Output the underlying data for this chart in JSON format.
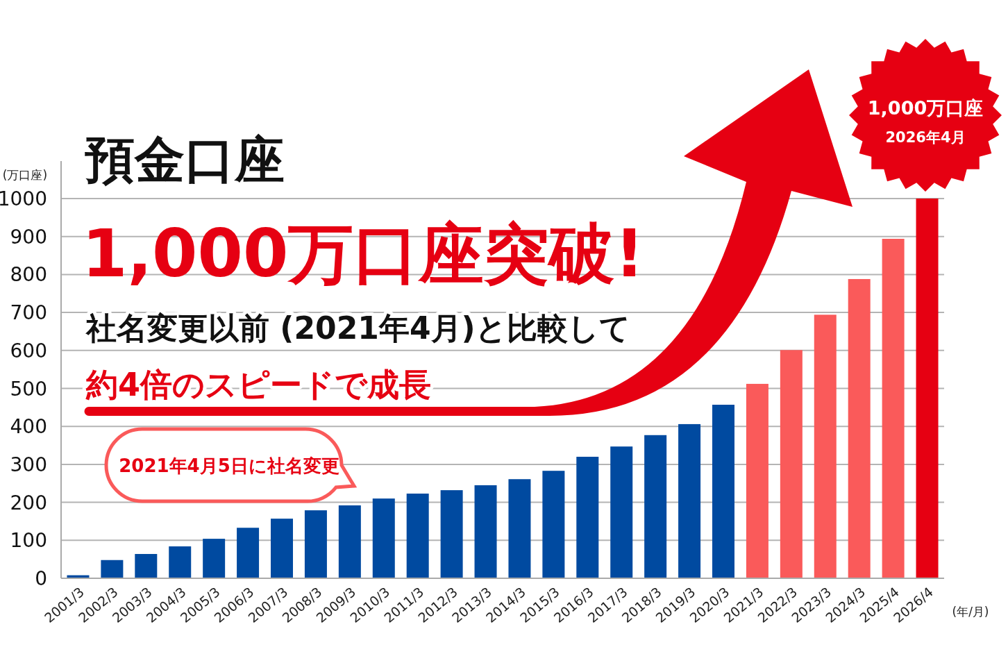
{
  "chart_data": {
    "type": "bar",
    "title": "預金口座",
    "subtitle": "1,000万口座突破!",
    "ylabel": "(万口座)",
    "xlabel": "(年/月)",
    "categories": [
      "2001/3",
      "2002/3",
      "2003/3",
      "2004/3",
      "2005/3",
      "2006/3",
      "2007/3",
      "2008/3",
      "2009/3",
      "2010/3",
      "2011/3",
      "2012/3",
      "2013/3",
      "2014/3",
      "2015/3",
      "2016/3",
      "2017/3",
      "2018/3",
      "2019/3",
      "2020/3",
      "2021/3",
      "2022/3",
      "2023/3",
      "2024/3",
      "2025/4",
      "2026/4"
    ],
    "values": [
      8,
      48,
      64,
      84,
      104,
      133,
      157,
      179,
      192,
      210,
      223,
      232,
      245,
      261,
      283,
      320,
      347,
      377,
      406,
      457,
      512,
      601,
      694,
      788,
      894,
      1000
    ],
    "colors": [
      "#004aa0",
      "#004aa0",
      "#004aa0",
      "#004aa0",
      "#004aa0",
      "#004aa0",
      "#004aa0",
      "#004aa0",
      "#004aa0",
      "#004aa0",
      "#004aa0",
      "#004aa0",
      "#004aa0",
      "#004aa0",
      "#004aa0",
      "#004aa0",
      "#004aa0",
      "#004aa0",
      "#004aa0",
      "#004aa0",
      "#fa5a5a",
      "#fa5a5a",
      "#fa5a5a",
      "#fa5a5a",
      "#fa5a5a",
      "#e60012"
    ],
    "ylim": [
      0,
      1000
    ],
    "yticks": [
      0,
      100,
      200,
      300,
      400,
      500,
      600,
      700,
      800,
      900,
      1000
    ],
    "grid": "y",
    "annotations": [
      "社名変更以前 (2021年4月)と比較して",
      "約4倍のスピードで成長",
      "1,000万口座",
      "2026年4月",
      "2021年4月5日に社名変更"
    ]
  }
}
